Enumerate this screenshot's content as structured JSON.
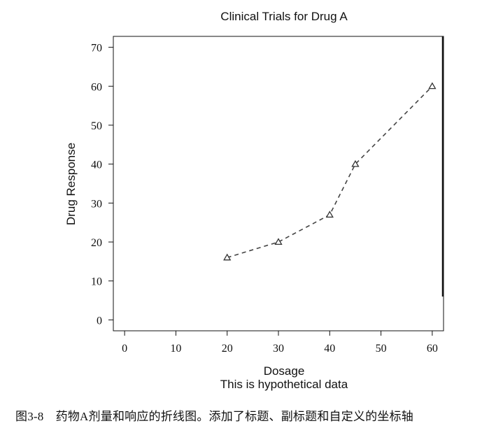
{
  "chart_data": {
    "type": "line",
    "title": "Clinical Trials for Drug A",
    "xlabel": "Dosage",
    "subtitle": "This is hypothetical data",
    "ylabel": "Drug Response",
    "x": [
      20,
      30,
      40,
      45,
      60
    ],
    "series": [
      {
        "values": [
          16,
          20,
          27,
          40,
          60
        ]
      }
    ],
    "xticks": [
      "0",
      "10",
      "20",
      "30",
      "40",
      "50",
      "60"
    ],
    "yticks": [
      "0",
      "10",
      "20",
      "30",
      "40",
      "50",
      "60",
      "70"
    ],
    "xlim": [
      -2.2,
      62.2
    ],
    "ylim": [
      -2.8,
      72.8
    ],
    "marker": "open-triangle",
    "line_style": "dashed",
    "grid": false,
    "line_color": "#444444"
  },
  "caption": "图3-8　药物A剂量和响应的折线图。添加了标题、副标题和自定义的坐标轴"
}
